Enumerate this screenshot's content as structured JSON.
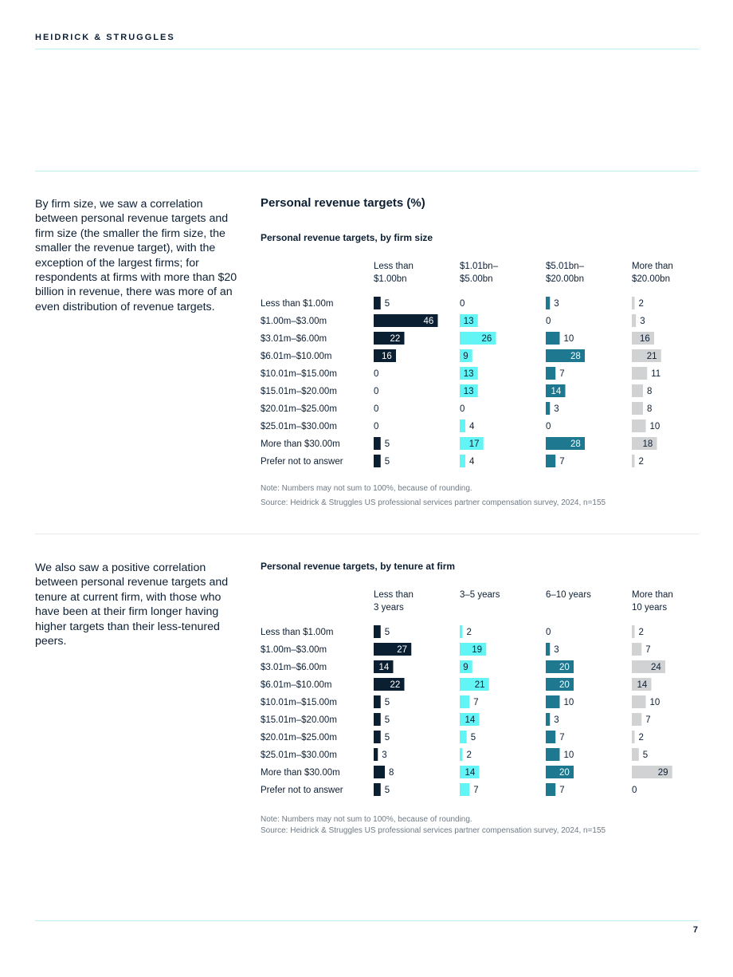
{
  "header": {
    "brand": "HEIDRICK & STRUGGLES",
    "page_number": "7"
  },
  "intro1": "By firm size, we saw a correlation between personal revenue targets and firm size (the smaller the firm size, the smaller the revenue target), with the exception of the largest firms; for respondents at firms with more than $20 billion in revenue, there was more of an even distribution of revenue targets.",
  "intro2": "We also saw a positive correlation between personal revenue targets and tenure at current firm, with those who have been at their firm longer having higher targets than their less-tenured peers.",
  "main_title": "Personal revenue targets (%)",
  "colors": {
    "c1": "#0b1f33",
    "c2": "#63f5f5",
    "c3": "#1d7890",
    "c4": "#d0d2d4"
  },
  "chart_data": [
    {
      "type": "bar",
      "title": "Personal revenue targets, by firm size",
      "categories": [
        "Less than $1.00m",
        "$1.00m–$3.00m",
        "$3.01m–$6.00m",
        "$6.01m–$10.00m",
        "$10.01m–$15.00m",
        "$15.01m–$20.00m",
        "$20.01m–$25.00m",
        "$25.01m–$30.00m",
        "More than $30.00m",
        "Prefer not to answer"
      ],
      "series": [
        {
          "name": "Less than $1.00bn",
          "label_lines": [
            "Less than",
            "$1.00bn"
          ],
          "values": [
            5,
            46,
            22,
            16,
            0,
            0,
            0,
            0,
            5,
            5
          ]
        },
        {
          "name": "$1.01bn–$5.00bn",
          "label_lines": [
            "$1.01bn–",
            "$5.00bn"
          ],
          "values": [
            0,
            13,
            26,
            9,
            13,
            13,
            0,
            4,
            17,
            4
          ]
        },
        {
          "name": "$5.01bn–$20.00bn",
          "label_lines": [
            "$5.01bn–",
            "$20.00bn"
          ],
          "values": [
            3,
            0,
            10,
            28,
            7,
            14,
            3,
            0,
            28,
            7
          ]
        },
        {
          "name": "More than $20.00bn",
          "label_lines": [
            "More than",
            "$20.00bn"
          ],
          "values": [
            2,
            3,
            16,
            21,
            11,
            8,
            8,
            10,
            18,
            2
          ]
        }
      ],
      "note": "Note: Numbers may not sum to 100%, because of rounding.",
      "source": "Source: Heidrick & Struggles US professional services partner compensation survey, 2024, n=155"
    },
    {
      "type": "bar",
      "title": "Personal revenue targets, by tenure at firm",
      "categories": [
        "Less than $1.00m",
        "$1.00m–$3.00m",
        "$3.01m–$6.00m",
        "$6.01m–$10.00m",
        "$10.01m–$15.00m",
        "$15.01m–$20.00m",
        "$20.01m–$25.00m",
        "$25.01m–$30.00m",
        "More than $30.00m",
        "Prefer not to answer"
      ],
      "series": [
        {
          "name": "Less than 3 years",
          "label_lines": [
            "Less than",
            "3 years"
          ],
          "values": [
            5,
            27,
            14,
            22,
            5,
            5,
            5,
            3,
            8,
            5
          ]
        },
        {
          "name": "3–5 years",
          "label_lines": [
            "3–5 years"
          ],
          "values": [
            2,
            19,
            9,
            21,
            7,
            14,
            5,
            2,
            14,
            7
          ]
        },
        {
          "name": "6–10 years",
          "label_lines": [
            "6–10 years"
          ],
          "values": [
            0,
            3,
            20,
            20,
            10,
            3,
            7,
            10,
            20,
            7
          ]
        },
        {
          "name": "More than 10 years",
          "label_lines": [
            "More than",
            "10 years"
          ],
          "values": [
            2,
            7,
            24,
            14,
            10,
            7,
            2,
            5,
            29,
            0
          ]
        }
      ],
      "note": "Note: Numbers may not sum to 100%, because of rounding.",
      "source": "Source: Heidrick & Struggles US professional services partner compensation survey, 2024, n=155"
    }
  ]
}
